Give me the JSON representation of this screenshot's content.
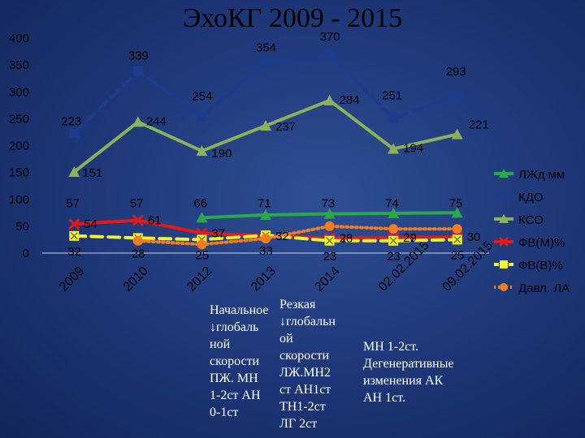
{
  "chart_data": {
    "type": "line",
    "title": "ЭхоКГ 2009 - 2015",
    "categories": [
      "2009",
      "2010",
      "2012",
      "2013",
      "2014",
      "02.02.2015",
      "09.02.2015"
    ],
    "ylim": [
      0,
      400
    ],
    "yticks": [
      0,
      50,
      100,
      150,
      200,
      250,
      300,
      350,
      400
    ],
    "legend_position": "right",
    "series": [
      {
        "name": "ЛЖд мм",
        "values": [
          null,
          null,
          66,
          71,
          73,
          74,
          75
        ],
        "labels": [
          "",
          "",
          "",
          "",
          "",
          "",
          ""
        ],
        "color": "#2aa84a",
        "style": "solid",
        "marker": "triangle"
      },
      {
        "name": "КДО",
        "values": [
          223,
          339,
          254,
          354,
          370,
          251,
          293
        ],
        "labels": [
          "223",
          "339",
          "254",
          "354",
          "370",
          "251",
          "293"
        ],
        "color": "#1c3d8f",
        "style": "dash",
        "marker": "square"
      },
      {
        "name": "КСО",
        "values": [
          151,
          244,
          190,
          237,
          284,
          194,
          221
        ],
        "labels": [
          "151",
          "244",
          "190",
          "237",
          "284",
          "194",
          "221"
        ],
        "color": "#8db15a",
        "style": "solid",
        "marker": "triangle"
      },
      {
        "name": "ФВ(М)%",
        "values": [
          54,
          61,
          37,
          32,
          28,
          29,
          30
        ],
        "labels": [
          "54",
          "61",
          "37",
          "32",
          "28",
          "29",
          "30"
        ],
        "color": "#e21a1a",
        "style": "solid",
        "marker": "x"
      },
      {
        "name": "ФВ(В)%",
        "values": [
          32,
          28,
          25,
          33,
          23,
          23,
          25
        ],
        "labels": [
          "32",
          "28",
          "25",
          "33",
          "23",
          "23",
          "25"
        ],
        "color": "#f2f234",
        "style": "dash",
        "marker": "squarex"
      },
      {
        "name": "Давл. ЛА",
        "values": [
          null,
          23,
          16,
          27,
          50,
          45,
          45
        ],
        "labels": [
          "",
          "",
          "",
          "",
          "",
          "",
          ""
        ],
        "color": "#ee7d24",
        "style": "dot",
        "marker": "circle"
      }
    ],
    "extra_labels": {
      "lzhd_upper": [
        "57",
        "57",
        "66",
        "71",
        "73",
        "74",
        "75"
      ]
    }
  },
  "notes": [
    {
      "text": "Начальное\n↓глобаль\nной\nскорости\nПЖ. МН\n1-2ст АН\n0-1ст"
    },
    {
      "text": "Резкая\n↓глобальн\nой\nскорости\nЛЖ.МН2\nст АН1ст\nТН1-2ст\nЛГ 2ст"
    },
    {
      "text": "МН 1-2ст.\nДегенеративные\nизменения АК\nАН 1ст."
    }
  ]
}
